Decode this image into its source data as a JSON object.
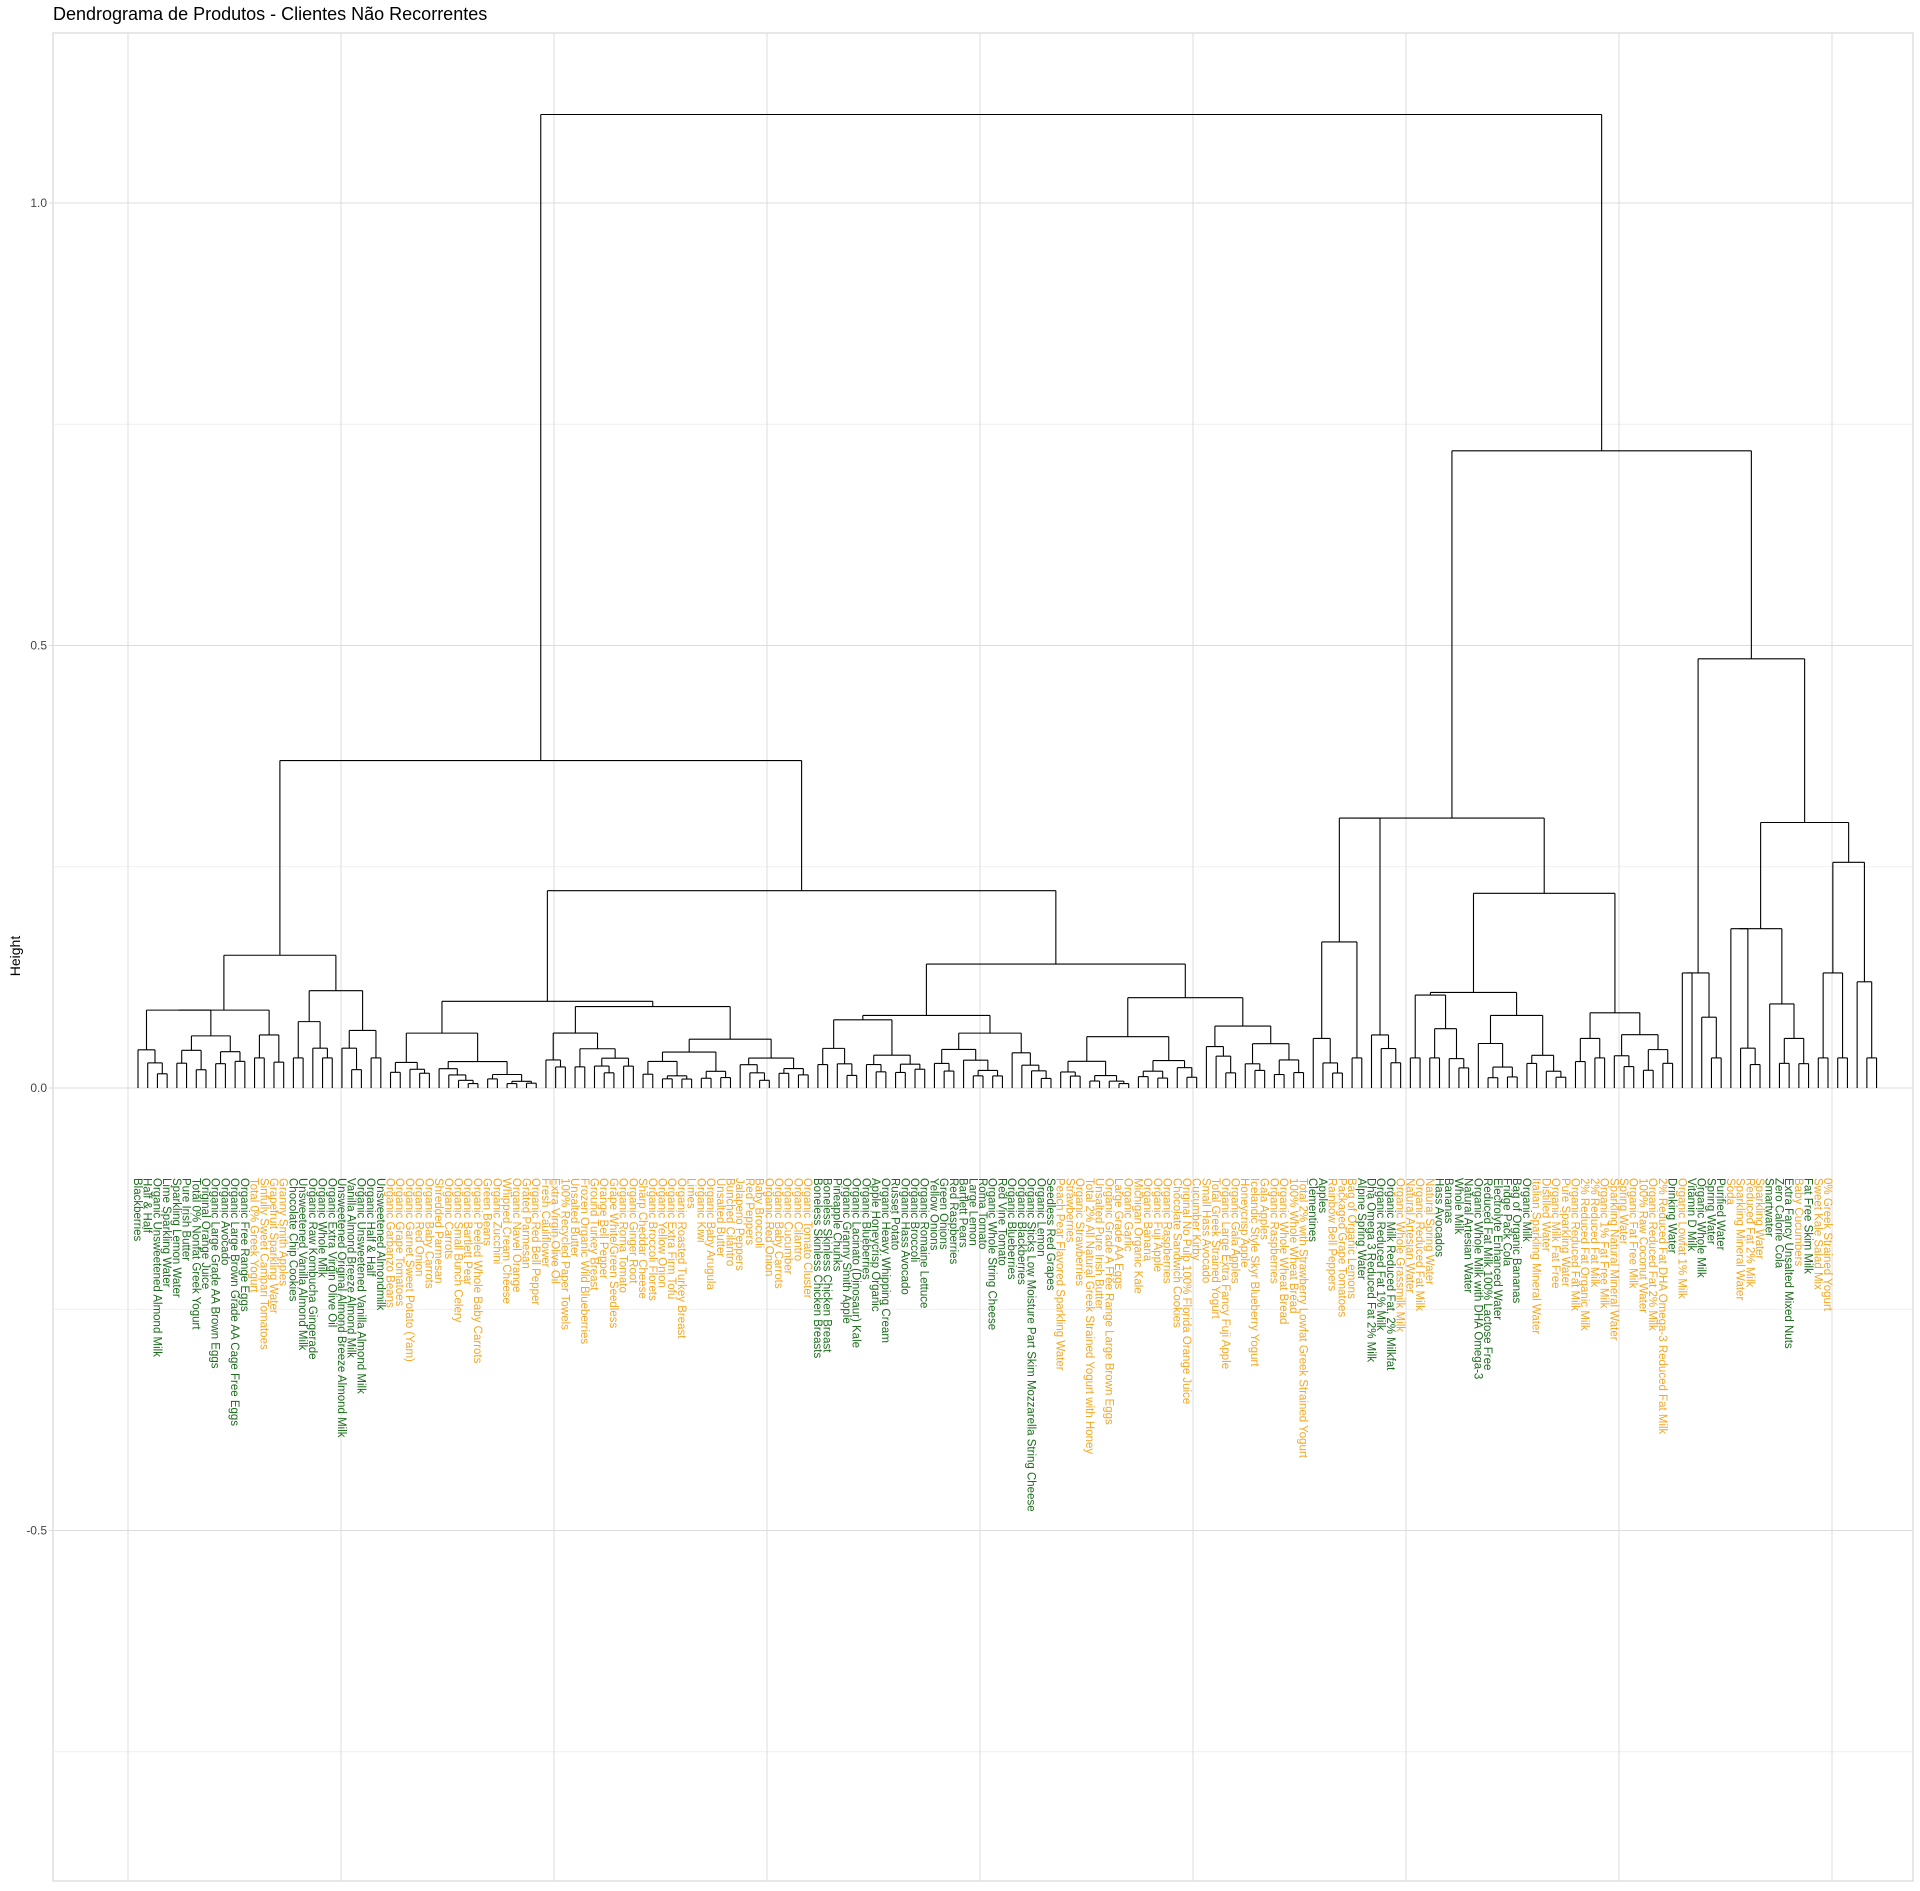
{
  "chart_data": {
    "type": "dendrogram",
    "title": "Dendrograma de Produtos - Clientes Não Recorrentes",
    "ylabel": "Height",
    "xlabel": "",
    "ylim": [
      -0.9,
      1.2
    ],
    "yticks": [
      -0.5,
      0.0,
      0.5,
      1.0
    ],
    "ytick_labels": [
      "-0.5",
      "0.0",
      "0.5",
      "1.0"
    ],
    "grid": true,
    "colors": {
      "group_a": "#1b6b1b",
      "group_b": "#f5a623",
      "branch": "#000000"
    },
    "leaves": [
      {
        "label": "Blackberries",
        "group": "a"
      },
      {
        "label": "Half & Half",
        "group": "a"
      },
      {
        "label": "Organic Unsweetened Almond Milk",
        "group": "a"
      },
      {
        "label": "Lime Sparkling Water",
        "group": "a"
      },
      {
        "label": "Sparkling Lemon Water",
        "group": "a"
      },
      {
        "label": "Pure Irish Butter",
        "group": "a"
      },
      {
        "label": "Total 0% Nonfat Greek Yogurt",
        "group": "a"
      },
      {
        "label": "Original Orange Juice",
        "group": "a"
      },
      {
        "label": "Organic Large Grade AA Brown Eggs",
        "group": "a"
      },
      {
        "label": "Organic Avocado",
        "group": "a"
      },
      {
        "label": "Organic Large Brown Grade AA Cage Free Eggs",
        "group": "a"
      },
      {
        "label": "Organic Free Range Eggs",
        "group": "a"
      },
      {
        "label": "Total 0% Greek Yogurt",
        "group": "b"
      },
      {
        "label": "Sinfully Sweet Campari Tomatoes",
        "group": "b"
      },
      {
        "label": "Grapefruit Sparkling Water",
        "group": "b"
      },
      {
        "label": "Granny Smith Apples",
        "group": "b"
      },
      {
        "label": "Chocolate Chip Cookies",
        "group": "a"
      },
      {
        "label": "Unsweetened Vanilla Almond Milk",
        "group": "a"
      },
      {
        "label": "Organic Raw Kombucha Gingerade",
        "group": "a"
      },
      {
        "label": "Organic Whole Milk",
        "group": "a"
      },
      {
        "label": "Organic Extra Virgin Olive Oil",
        "group": "a"
      },
      {
        "label": "Unsweetened Original Almond Breeze Almond Milk",
        "group": "a"
      },
      {
        "label": "Vanilla Almond Breeze Almond Milk",
        "group": "a"
      },
      {
        "label": "Organic Unsweetened Vanilla Almond Milk",
        "group": "a"
      },
      {
        "label": "Organic Half & Half",
        "group": "a"
      },
      {
        "label": "Unsweetened Almondmilk",
        "group": "a"
      },
      {
        "label": "Organic Garbanzo Beans",
        "group": "b"
      },
      {
        "label": "Organic Grape Tomatoes",
        "group": "b"
      },
      {
        "label": "Organic Garnet Sweet Potato (Yam)",
        "group": "b"
      },
      {
        "label": "Organic Red Onion",
        "group": "b"
      },
      {
        "label": "Organic Baby Carrots",
        "group": "b"
      },
      {
        "label": "Shredded Parmesan",
        "group": "b"
      },
      {
        "label": "Organic Carrots",
        "group": "b"
      },
      {
        "label": "Organic Small Bunch Celery",
        "group": "b"
      },
      {
        "label": "Organic Bartlett Pear",
        "group": "b"
      },
      {
        "label": "Organic Peeled Whole Baby Carrots",
        "group": "b"
      },
      {
        "label": "Green Beans",
        "group": "b"
      },
      {
        "label": "Organic Zucchini",
        "group": "b"
      },
      {
        "label": "Whipped Cream Cheese",
        "group": "b"
      },
      {
        "label": "Organic Navel Orange",
        "group": "b"
      },
      {
        "label": "Grated Parmesan",
        "group": "b"
      },
      {
        "label": "Organic Red Bell Pepper",
        "group": "b"
      },
      {
        "label": "Fresh Cauliflower",
        "group": "b"
      },
      {
        "label": "Extra Virgin Olive Oil",
        "group": "b"
      },
      {
        "label": "100% Recycled Paper Towels",
        "group": "b"
      },
      {
        "label": "Unsalted Butter",
        "group": "b"
      },
      {
        "label": "Frozen Organic Wild Blueberries",
        "group": "b"
      },
      {
        "label": "Ground Turkey Breast",
        "group": "b"
      },
      {
        "label": "Orange Bell Pepper",
        "group": "b"
      },
      {
        "label": "Grape White/Green Seedless",
        "group": "b"
      },
      {
        "label": "Organic Roma Tomato",
        "group": "b"
      },
      {
        "label": "Organic Ginger Root",
        "group": "b"
      },
      {
        "label": "Sharp Cheddar Cheese",
        "group": "b"
      },
      {
        "label": "Organic Broccoli Florets",
        "group": "b"
      },
      {
        "label": "Organic Yellow Onion",
        "group": "b"
      },
      {
        "label": "Organic Extra Firm Tofu",
        "group": "b"
      },
      {
        "label": "Organic Roasted Turkey Breast",
        "group": "b"
      },
      {
        "label": "Limes",
        "group": "b"
      },
      {
        "label": "Organic Kiwi",
        "group": "b"
      },
      {
        "label": "Organic Baby Arugula",
        "group": "b"
      },
      {
        "label": "Unsalted Butter",
        "group": "b"
      },
      {
        "label": "Bunched Cilantro",
        "group": "b"
      },
      {
        "label": "Jalapeno Peppers",
        "group": "b"
      },
      {
        "label": "Red Peppers",
        "group": "b"
      },
      {
        "label": "Baby Broccoli",
        "group": "b"
      },
      {
        "label": "Organic Red Onion",
        "group": "b"
      },
      {
        "label": "Organic Baby Carrots",
        "group": "b"
      },
      {
        "label": "Organic Cucumber",
        "group": "b"
      },
      {
        "label": "Organic Cilantro",
        "group": "b"
      },
      {
        "label": "Organic Tomato Cluster",
        "group": "b"
      },
      {
        "label": "Boneless Skinless Chicken Breasts",
        "group": "a"
      },
      {
        "label": "Boneless Skinless Chicken Breast",
        "group": "a"
      },
      {
        "label": "Pineapple Chunks",
        "group": "a"
      },
      {
        "label": "Organic Granny Smith Apple",
        "group": "a"
      },
      {
        "label": "Organic Lacinato (Dinosaur) Kale",
        "group": "a"
      },
      {
        "label": "Organic Blueberries",
        "group": "a"
      },
      {
        "label": "Apple Honeycrisp Organic",
        "group": "a"
      },
      {
        "label": "Organic Heavy Whipping Cream",
        "group": "a"
      },
      {
        "label": "Russet Potato",
        "group": "a"
      },
      {
        "label": "Organic Hass Avocado",
        "group": "a"
      },
      {
        "label": "Organic Broccoli",
        "group": "a"
      },
      {
        "label": "Organic Romaine Lettuce",
        "group": "a"
      },
      {
        "label": "Yellow Onions",
        "group": "a"
      },
      {
        "label": "Green Onions",
        "group": "a"
      },
      {
        "label": "Red Raspberries",
        "group": "a"
      },
      {
        "label": "Bartlett Pears",
        "group": "a"
      },
      {
        "label": "Large Lemon",
        "group": "a"
      },
      {
        "label": "Roma Tomato",
        "group": "a"
      },
      {
        "label": "Organic Whole String Cheese",
        "group": "a"
      },
      {
        "label": "Red Vine Tomato",
        "group": "a"
      },
      {
        "label": "Organic Blueberries",
        "group": "a"
      },
      {
        "label": "Organic Blackberries",
        "group": "a"
      },
      {
        "label": "Organic Sticks Low Moisture Part Skim Mozzarella String Cheese",
        "group": "a"
      },
      {
        "label": "Organic Lemon",
        "group": "a"
      },
      {
        "label": "Seedless Red Grapes",
        "group": "a"
      },
      {
        "label": "Peach Pear Flavored Sparkling Water",
        "group": "b"
      },
      {
        "label": "Strawberries",
        "group": "b"
      },
      {
        "label": "Organic Strawberries",
        "group": "b"
      },
      {
        "label": "Total 2% All Natural Greek Strained Yogurt with Honey",
        "group": "b"
      },
      {
        "label": "Unsalted Pure Irish Butter",
        "group": "b"
      },
      {
        "label": "Organic Grade A Free Range Large Brown Eggs",
        "group": "b"
      },
      {
        "label": "Large Grade AA Eggs",
        "group": "b"
      },
      {
        "label": "Organic Garlic",
        "group": "b"
      },
      {
        "label": "Michigan Organic Kale",
        "group": "b"
      },
      {
        "label": "Organic Banana",
        "group": "b"
      },
      {
        "label": "Organic Fuji Apple",
        "group": "b"
      },
      {
        "label": "Organic Raspberries",
        "group": "b"
      },
      {
        "label": "Chocolate Sandwich Cookies",
        "group": "b"
      },
      {
        "label": "Original No Pulp 100% Florida Orange Juice",
        "group": "b"
      },
      {
        "label": "Cucumber Kirby",
        "group": "b"
      },
      {
        "label": "Small Hass Avocado",
        "group": "b"
      },
      {
        "label": "Total Greek Strained Yogurt",
        "group": "b"
      },
      {
        "label": "Organic Large Extra Fancy Fuji Apple",
        "group": "b"
      },
      {
        "label": "Organic Gala Apples",
        "group": "b"
      },
      {
        "label": "Honeycrisp Apple",
        "group": "b"
      },
      {
        "label": "Icelandic Style Skyr Blueberry Yogurt",
        "group": "b"
      },
      {
        "label": "Gala Apples",
        "group": "b"
      },
      {
        "label": "Organic Raspberries",
        "group": "b"
      },
      {
        "label": "Organic Whole Wheat Bread",
        "group": "b"
      },
      {
        "label": "100% Whole Wheat Bread",
        "group": "b"
      },
      {
        "label": "Total 2% with Strawberry Lowfat Greek Strained Yogurt",
        "group": "b"
      },
      {
        "label": "Clementines",
        "group": "a"
      },
      {
        "label": "Apples",
        "group": "a"
      },
      {
        "label": "Rainbow Bell Peppers",
        "group": "b"
      },
      {
        "label": "Packaged Grape Tomatoes",
        "group": "b"
      },
      {
        "label": "Bag of Organic Lemons",
        "group": "b"
      },
      {
        "label": "Alpine Spring Water",
        "group": "a"
      },
      {
        "label": "Dha Omega 3 Reduced Fat 2% Milk",
        "group": "a"
      },
      {
        "label": "Organic Reduced Fat 1% Milk",
        "group": "a"
      },
      {
        "label": "Organic Milk Reduced Fat, 2% Milkfat",
        "group": "a"
      },
      {
        "label": "Organic Whole Grassmilk Milk",
        "group": "b"
      },
      {
        "label": "Natural Artesian Water",
        "group": "b"
      },
      {
        "label": "Organic Reduced Fat Milk",
        "group": "b"
      },
      {
        "label": "Natural Spring Water",
        "group": "b"
      },
      {
        "label": "Hass Avocados",
        "group": "a"
      },
      {
        "label": "Bananas",
        "group": "a"
      },
      {
        "label": "Whole Milk",
        "group": "a"
      },
      {
        "label": "Natural Artesian Water",
        "group": "a"
      },
      {
        "label": "Organic Whole Milk with DHA Omega-3",
        "group": "a"
      },
      {
        "label": "Reduced Fat Milk 100% Lactose Free",
        "group": "a"
      },
      {
        "label": "Electrolyte Enhanced Water",
        "group": "a"
      },
      {
        "label": "Fridge Pack Cola",
        "group": "a"
      },
      {
        "label": "Bag of Organic Bananas",
        "group": "a"
      },
      {
        "label": "Organic Milk",
        "group": "a"
      },
      {
        "label": "Italian Sparkling Mineral Water",
        "group": "b"
      },
      {
        "label": "Distilled Water",
        "group": "b"
      },
      {
        "label": "Organic Milk Fat Free",
        "group": "b"
      },
      {
        "label": "Pure Sparkling Water",
        "group": "b"
      },
      {
        "label": "Organic Reduced Fat Milk",
        "group": "b"
      },
      {
        "label": "2% Reduced Fat Organic Milk",
        "group": "b"
      },
      {
        "label": "2% Reduced Fat Milk",
        "group": "b"
      },
      {
        "label": "Organic 1% Fat Free Milk",
        "group": "b"
      },
      {
        "label": "Sparkling Natural Mineral Water",
        "group": "b"
      },
      {
        "label": "Spring Water",
        "group": "b"
      },
      {
        "label": "Organic Fat Free Milk",
        "group": "b"
      },
      {
        "label": "100% Raw Coconut Water",
        "group": "b"
      },
      {
        "label": "Organic Reduced Fat 2% Milk",
        "group": "b"
      },
      {
        "label": "2% Reduced Fat DHA Omega-3 Reduced Fat Milk",
        "group": "b"
      },
      {
        "label": "Drinking Water",
        "group": "a"
      },
      {
        "label": "Organic Lowfat 1% Milk",
        "group": "b"
      },
      {
        "label": "Vitamin D Milk",
        "group": "a"
      },
      {
        "label": "Organic Whole Milk",
        "group": "a"
      },
      {
        "label": "Spring Water",
        "group": "a"
      },
      {
        "label": "Purified Water",
        "group": "a"
      },
      {
        "label": "Soda",
        "group": "b"
      },
      {
        "label": "Sparkling Mineral Water",
        "group": "b"
      },
      {
        "label": "Reduced Fat 2% Milk",
        "group": "b"
      },
      {
        "label": "Sparkling Water",
        "group": "b"
      },
      {
        "label": "Smartwater",
        "group": "a"
      },
      {
        "label": "Zero Calorie Cola",
        "group": "a"
      },
      {
        "label": "Extra Fancy Unsalted Mixed Nuts",
        "group": "a"
      },
      {
        "label": "Baby Cucumbers",
        "group": "b"
      },
      {
        "label": "Fat Free Skim Milk",
        "group": "a"
      },
      {
        "label": "Sweet Kale Salad Mix",
        "group": "b"
      },
      {
        "label": "0% Greek Strained Yogurt",
        "group": "b"
      }
    ]
  }
}
